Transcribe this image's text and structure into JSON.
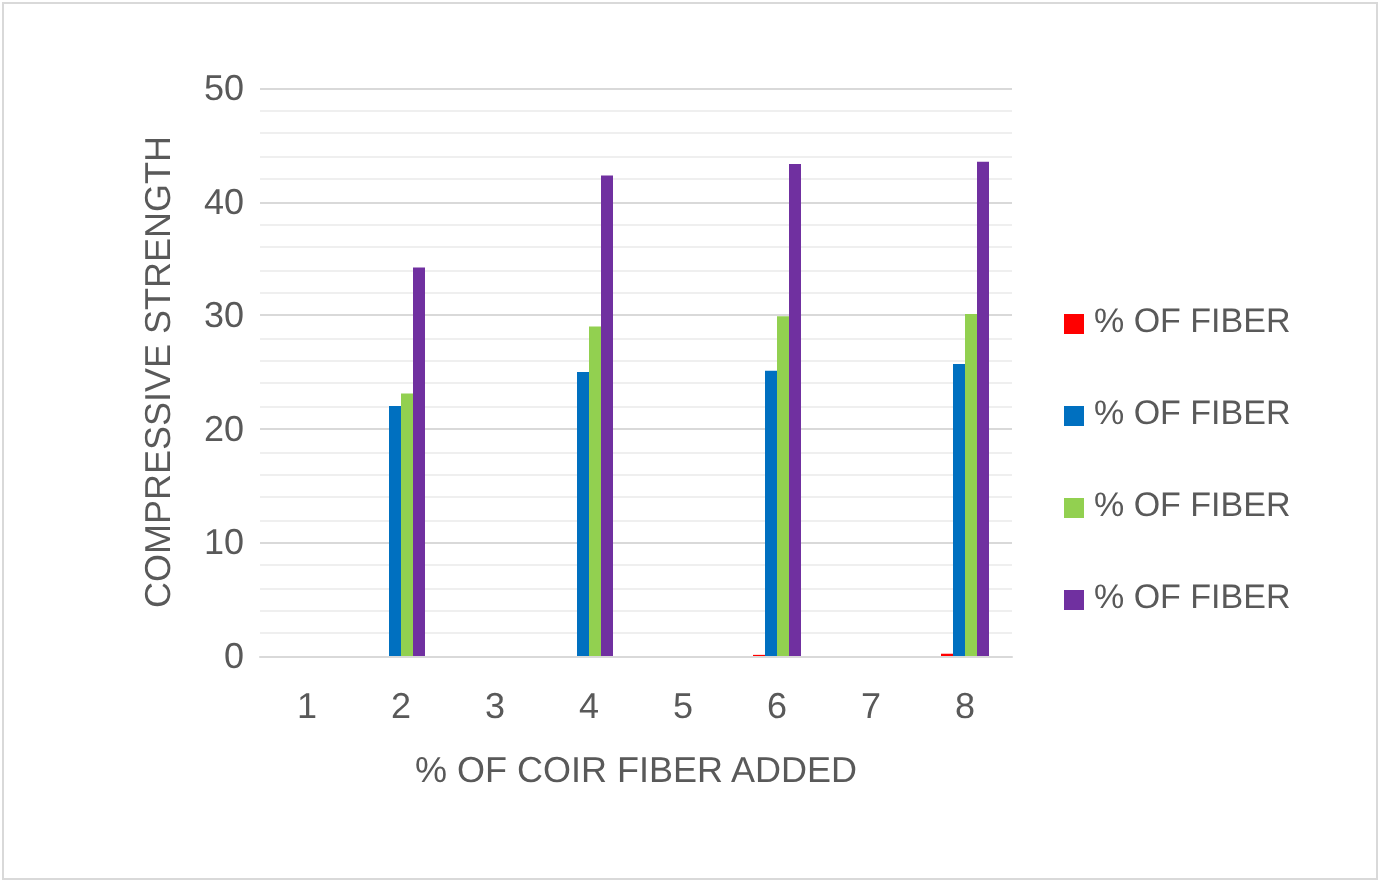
{
  "chart_data": {
    "type": "bar",
    "xlabel": "% OF COIR FIBER ADDED",
    "ylabel": "COMPRESSIVE STRENGTH",
    "categories": [
      "1",
      "2",
      "3",
      "4",
      "5",
      "6",
      "7",
      "8"
    ],
    "series": [
      {
        "name": "% OF FIBER",
        "color": "#ff0000",
        "values": [
          0,
          0,
          0,
          0,
          0,
          0.1,
          0,
          0.2
        ]
      },
      {
        "name": "% OF FIBER",
        "color": "#0070c0",
        "values": [
          0,
          22,
          0,
          25,
          0,
          25.1,
          0,
          25.7
        ]
      },
      {
        "name": "% OF FIBER",
        "color": "#92d050",
        "values": [
          0,
          23.1,
          0,
          29,
          0,
          29.9,
          0,
          30.1
        ]
      },
      {
        "name": "% OF FIBER",
        "color": "#7030a0",
        "values": [
          0,
          34.2,
          0,
          42.3,
          0,
          43.3,
          0,
          43.5
        ]
      }
    ],
    "ylim": [
      0,
      50
    ],
    "yticks": [
      0,
      10,
      20,
      30,
      40,
      50
    ],
    "grid": "y",
    "legend": "right"
  }
}
